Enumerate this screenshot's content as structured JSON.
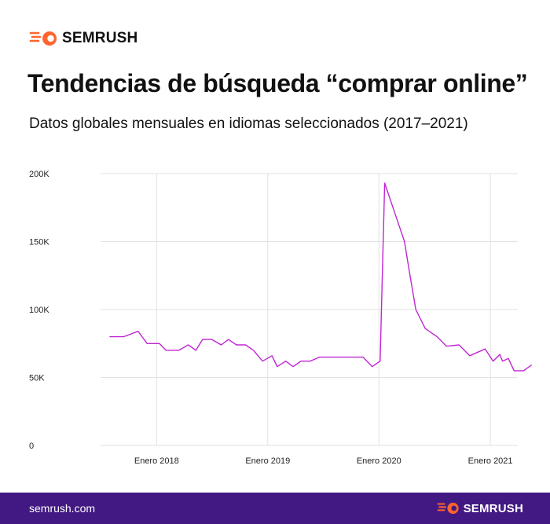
{
  "brand": {
    "name": "SEMRUSH",
    "accent": "#FF642D",
    "footer_bg": "#421983",
    "url": "semrush.com"
  },
  "header": {
    "title": "Tendencias de búsqueda “comprar online”",
    "subtitle": "Datos globales mensuales en idiomas seleccionados (2017–2021)"
  },
  "chart_data": {
    "type": "line",
    "title": "Tendencias de búsqueda “comprar online”",
    "subtitle": "Datos globales mensuales en idiomas seleccionados (2017–2021)",
    "xlabel": "",
    "ylabel": "",
    "ylim": [
      0,
      200000
    ],
    "yticks": [
      0,
      50000,
      100000,
      150000,
      200000
    ],
    "ytick_labels": [
      "0",
      "50K",
      "100K",
      "150K",
      "200K"
    ],
    "xticks": [
      "2018-01",
      "2019-01",
      "2020-01",
      "2021-01"
    ],
    "xtick_labels": [
      "Enero 2018",
      "Enero 2019",
      "Enero 2020",
      "Enero 2021"
    ],
    "xlim": [
      "2017-07",
      "2021-04"
    ],
    "grid": true,
    "color": "#C026D3",
    "x": [
      "2017-08",
      "2017-09",
      "2017-10",
      "2017-11",
      "2017-12",
      "2018-01",
      "2018-02",
      "2018-03",
      "2018-04",
      "2018-05",
      "2018-06",
      "2018-07",
      "2018-08",
      "2018-09",
      "2018-10",
      "2018-11",
      "2018-12",
      "2019-01",
      "2019-02",
      "2019-03",
      "2019-04",
      "2019-05",
      "2019-06",
      "2019-07",
      "2019-08",
      "2019-09",
      "2019-10",
      "2019-11",
      "2019-12",
      "2020-01",
      "2020-02",
      "2020-03",
      "2020-04",
      "2020-05",
      "2020-06",
      "2020-07",
      "2020-08",
      "2020-09",
      "2020-10",
      "2020-11",
      "2020-12",
      "2021-01",
      "2021-02",
      "2021-03",
      "2021-04"
    ],
    "values": [
      80000,
      80000,
      80000,
      84000,
      75000,
      75000,
      70000,
      70000,
      70000,
      74000,
      70000,
      78000,
      78000,
      74000,
      78000,
      74000,
      74000,
      70000,
      62000,
      66000,
      58000,
      62000,
      58000,
      62000,
      62000,
      65000,
      65000,
      65000,
      65000,
      58000,
      62000,
      193000,
      150000,
      100000,
      86000,
      80000,
      73000,
      74000,
      74000,
      70000,
      66000,
      71000,
      62000,
      55000,
      55000
    ],
    "series": [
      {
        "name": "",
        "points": [
          [
            "2017-08-01",
            80000
          ],
          [
            "2017-09-15",
            80000
          ],
          [
            "2017-11-01",
            84000
          ],
          [
            "2017-12-01",
            75000
          ],
          [
            "2018-01-10",
            75000
          ],
          [
            "2018-02-01",
            70000
          ],
          [
            "2018-03-15",
            70000
          ],
          [
            "2018-04-15",
            74000
          ],
          [
            "2018-05-10",
            70000
          ],
          [
            "2018-06-01",
            78000
          ],
          [
            "2018-07-01",
            78000
          ],
          [
            "2018-08-01",
            74000
          ],
          [
            "2018-08-25",
            78000
          ],
          [
            "2018-09-20",
            74000
          ],
          [
            "2018-10-20",
            74000
          ],
          [
            "2018-11-15",
            70000
          ],
          [
            "2018-12-15",
            62000
          ],
          [
            "2019-01-15",
            66000
          ],
          [
            "2019-02-01",
            58000
          ],
          [
            "2019-03-01",
            62000
          ],
          [
            "2019-03-25",
            58000
          ],
          [
            "2019-04-20",
            62000
          ],
          [
            "2019-05-20",
            62000
          ],
          [
            "2019-06-20",
            65000
          ],
          [
            "2019-08-01",
            65000
          ],
          [
            "2019-09-15",
            65000
          ],
          [
            "2019-11-10",
            65000
          ],
          [
            "2019-12-10",
            58000
          ],
          [
            "2020-01-05",
            62000
          ],
          [
            "2020-01-20",
            193000
          ],
          [
            "2020-03-25",
            150000
          ],
          [
            "2020-04-10",
            128000
          ],
          [
            "2020-05-01",
            100000
          ],
          [
            "2020-06-01",
            86000
          ],
          [
            "2020-07-10",
            80000
          ],
          [
            "2020-08-10",
            73000
          ],
          [
            "2020-09-20",
            74000
          ],
          [
            "2020-10-25",
            66000
          ],
          [
            "2020-12-15",
            71000
          ],
          [
            "2021-01-10",
            62000
          ],
          [
            "2021-02-01",
            67000
          ],
          [
            "2021-02-10",
            62000
          ],
          [
            "2021-03-01",
            64000
          ],
          [
            "2021-03-20",
            55000
          ],
          [
            "2021-04-20",
            55000
          ],
          [
            "2021-05-15",
            59000
          ]
        ]
      }
    ]
  }
}
